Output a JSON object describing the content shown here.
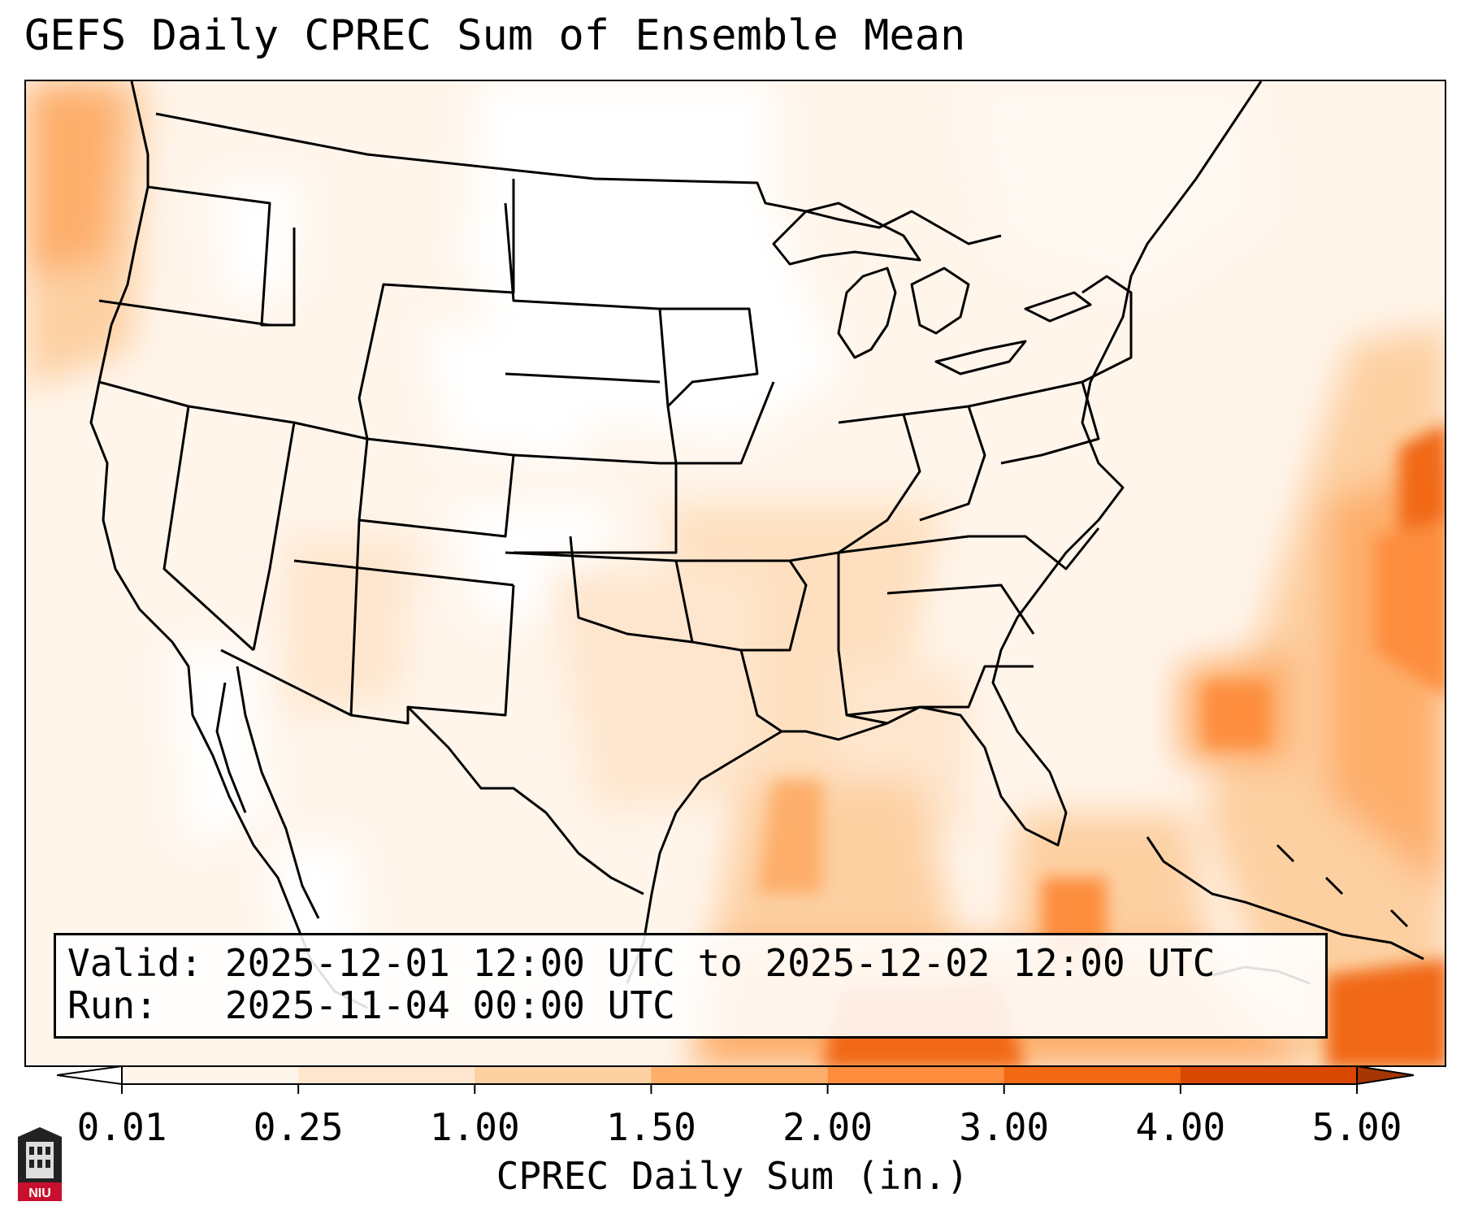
{
  "title": "GEFS Daily CPREC Sum of Ensemble Mean",
  "info": {
    "valid_label": "Valid:",
    "valid_value": "2025-12-01 12:00 UTC to 2025-12-02 12:00 UTC",
    "run_label": "Run:",
    "run_value": "2025-11-04 00:00 UTC"
  },
  "colorbar": {
    "label": "CPREC Daily Sum (in.)",
    "ticks": [
      "0.01",
      "0.25",
      "1.00",
      "1.50",
      "2.00",
      "3.00",
      "4.00",
      "5.00"
    ],
    "colors": [
      "#fff5eb",
      "#fee6ce",
      "#fdd0a2",
      "#fdae6b",
      "#fd8d3c",
      "#f16913",
      "#d94801"
    ],
    "under_color": "#ffffff",
    "over_color": "#a63603"
  },
  "logo": {
    "text": "NIU"
  }
}
